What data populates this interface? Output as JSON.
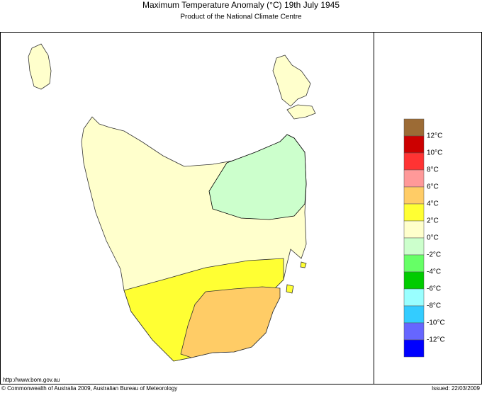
{
  "header": {
    "title": "Maximum Temperature Anomaly (°C)  19th July 1945",
    "subtitle": "Product of the National Climate Centre"
  },
  "legend": {
    "colors": [
      "#9c6b35",
      "#cc0000",
      "#ff3333",
      "#ff9999",
      "#ffcc66",
      "#ffff33",
      "#ffffcc",
      "#ccffcc",
      "#66ff66",
      "#00cc00",
      "#99ffff",
      "#33ccff",
      "#6666ff",
      "#0000ff"
    ],
    "labels": [
      "12°C",
      "10°C",
      "8°C",
      "6°C",
      "4°C",
      "2°C",
      "0°C",
      "-2°C",
      "-4°C",
      "-6°C",
      "-8°C",
      "-10°C",
      "-12°C"
    ]
  },
  "footer": {
    "url": "http://www.bom.gov.au",
    "copyright": "© Commonwealth of Australia 2009, Australian Bureau of Meteorology",
    "issued": "Issued: 22/03/2009"
  }
}
